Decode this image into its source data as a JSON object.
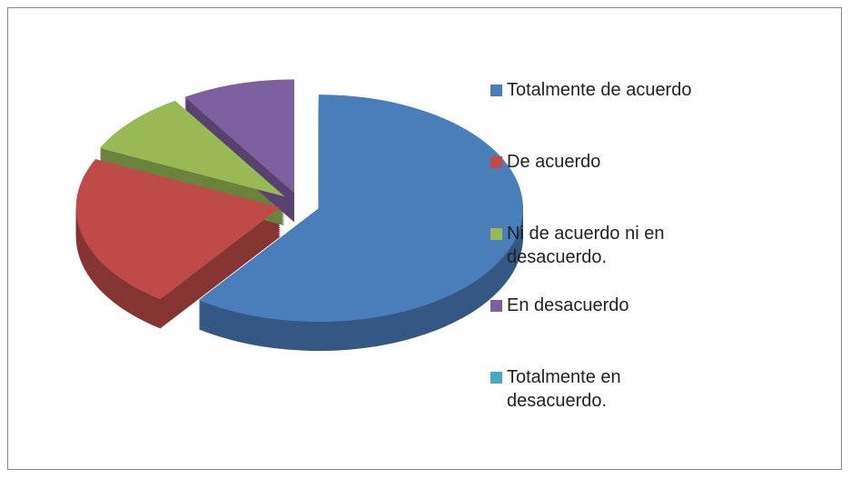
{
  "chart_data": {
    "type": "pie",
    "categories": [
      "Totalmente de acuerdo",
      "De acuerdo",
      "Ni de acuerdo ni en desacuerdo.",
      "En desacuerdo",
      "Totalmente en desacuerdo."
    ],
    "values": [
      60,
      22,
      9,
      9,
      0
    ],
    "colors": [
      "#4a7ebb",
      "#be4b48",
      "#98b954",
      "#7d60a0",
      "#46aac5"
    ],
    "legend": "right"
  }
}
